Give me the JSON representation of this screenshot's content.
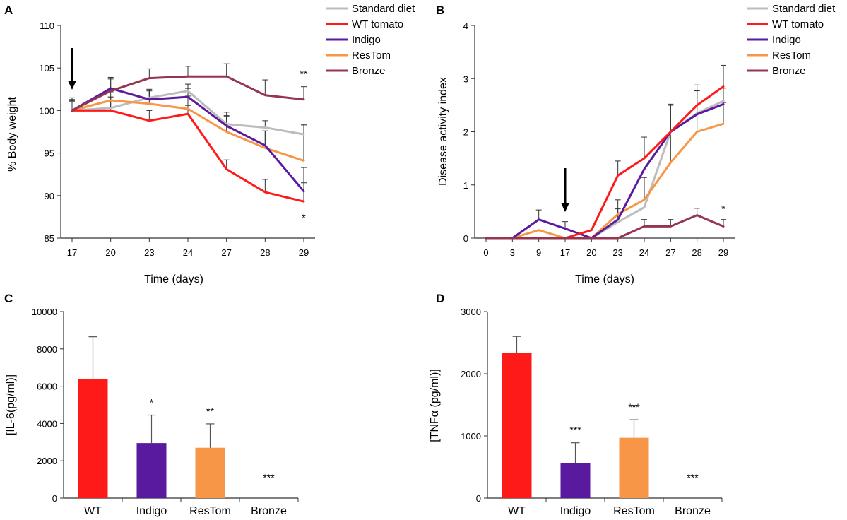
{
  "colors": {
    "standard_diet": "#bcbcbc",
    "wt_tomato": "#ff1a1a",
    "indigo": "#5a1aa0",
    "restom": "#f79646",
    "bronze": "#94364f"
  },
  "chart_data": [
    {
      "panel": "A",
      "type": "line",
      "categories": [
        "17",
        "20",
        "23",
        "24",
        "27",
        "28",
        "29"
      ],
      "xlabel": "Time (days)",
      "ylabel": "% Body weight",
      "ylim": [
        85,
        110
      ],
      "yticks": [
        "85",
        "90",
        "95",
        "100",
        "105",
        "110"
      ],
      "legend": [
        "Standard diet",
        "WT tomato",
        "Indigo",
        "ResTom",
        "Bronze"
      ],
      "series": [
        {
          "name": "Standard diet",
          "values": [
            100,
            100.3,
            101.5,
            102.3,
            98.4,
            98.0,
            97.2
          ],
          "errors": [
            1.2,
            1.3,
            1.0,
            0.8,
            1.0,
            0.8,
            1.2
          ]
        },
        {
          "name": "WT tomato",
          "values": [
            100,
            100,
            98.8,
            99.6,
            93.1,
            90.4,
            89.3
          ],
          "errors": [
            1.3,
            1.5,
            1.2,
            1.0,
            1.1,
            1.5,
            2.2
          ]
        },
        {
          "name": "Indigo",
          "values": [
            100,
            102.6,
            101.3,
            101.6,
            98.2,
            95.9,
            90.5
          ],
          "errors": [
            1.1,
            1.3,
            1.0,
            1.0,
            1.6,
            1.7,
            2.8
          ]
        },
        {
          "name": "ResTom",
          "values": [
            100,
            101.2,
            100.8,
            100.2,
            97.5,
            95.6,
            94.1
          ],
          "errors": [
            1.5,
            1.0,
            1.6,
            1.5,
            1.8,
            2.0,
            4.2
          ]
        },
        {
          "name": "Bronze",
          "values": [
            100,
            102.3,
            103.8,
            104.0,
            104.0,
            101.8,
            101.3
          ],
          "errors": [
            1.2,
            1.4,
            1.1,
            1.2,
            1.5,
            1.8,
            1.5
          ]
        }
      ],
      "arrow_at": "17",
      "annotations": [
        {
          "text": "**",
          "at": "29",
          "y": 104.3
        },
        {
          "text": "*",
          "at": "29",
          "y": 87.4
        }
      ]
    },
    {
      "panel": "B",
      "type": "line",
      "categories": [
        "0",
        "3",
        "9",
        "17",
        "20",
        "23",
        "24",
        "27",
        "28",
        "29"
      ],
      "xlabel": "Time (days)",
      "ylabel": "Disease activity index",
      "ylim": [
        0,
        4
      ],
      "yticks": [
        "0",
        "1",
        "2",
        "3",
        "4"
      ],
      "legend": [
        "Standard diet",
        "WT tomato",
        "Indigo",
        "ResTom",
        "Bronze"
      ],
      "series": [
        {
          "name": "Standard diet",
          "values": [
            0,
            0,
            0,
            0,
            0,
            0.3,
            0.58,
            2.0,
            2.35,
            2.58
          ],
          "errors": [
            0,
            0,
            0,
            0,
            0,
            0,
            0,
            0,
            0,
            0
          ]
        },
        {
          "name": "WT tomato",
          "values": [
            0,
            0,
            0,
            0,
            0.15,
            1.18,
            1.5,
            2.0,
            2.5,
            2.85
          ],
          "errors": [
            0,
            0,
            0,
            0,
            0,
            0.27,
            0.4,
            0.5,
            0.38,
            0.4
          ]
        },
        {
          "name": "Indigo",
          "values": [
            0,
            0,
            0.35,
            0.18,
            0,
            0.35,
            1.3,
            2.0,
            2.33,
            2.52
          ],
          "errors": [
            0,
            0,
            0.18,
            0.13,
            0,
            0.2,
            0,
            0.5,
            0.45,
            0.3
          ]
        },
        {
          "name": "ResTom",
          "values": [
            0,
            0,
            0.15,
            0,
            0,
            0.45,
            0.72,
            1.42,
            2.0,
            2.15
          ],
          "errors": [
            0,
            0,
            0,
            0,
            0,
            0.27,
            0.42,
            1.1,
            0.77,
            0.4
          ]
        },
        {
          "name": "Bronze",
          "values": [
            0,
            0,
            0,
            0,
            0,
            0,
            0.22,
            0.22,
            0.43,
            0.22
          ],
          "errors": [
            0,
            0,
            0,
            0,
            0,
            0,
            0.13,
            0.13,
            0.13,
            0.13
          ]
        }
      ],
      "arrow_at": "17",
      "annotations": [
        {
          "text": "*",
          "at": "29",
          "y": 0.55
        }
      ]
    },
    {
      "panel": "C",
      "type": "bar",
      "categories": [
        "WT",
        "Indigo",
        "ResTom",
        "Bronze"
      ],
      "values": [
        6400,
        2950,
        2700,
        0
      ],
      "errors": [
        2250,
        1500,
        1280,
        0
      ],
      "ylabel": "[IL-6(pg/ml)]",
      "ylim": [
        0,
        10000
      ],
      "yticks": [
        "0",
        "2000",
        "4000",
        "6000",
        "8000",
        "10000"
      ],
      "significance": [
        "",
        "*",
        "**",
        "***"
      ]
    },
    {
      "panel": "D",
      "type": "bar",
      "categories": [
        "WT",
        "Indigo",
        "ResTom",
        "Bronze"
      ],
      "values": [
        2340,
        560,
        970,
        0
      ],
      "errors": [
        260,
        330,
        290,
        0
      ],
      "ylabel": "[TNFα (pg/ml)]",
      "ylim": [
        0,
        3000
      ],
      "yticks": [
        "0",
        "1000",
        "2000",
        "3000"
      ],
      "significance": [
        "",
        "***",
        "***",
        "***"
      ]
    }
  ]
}
